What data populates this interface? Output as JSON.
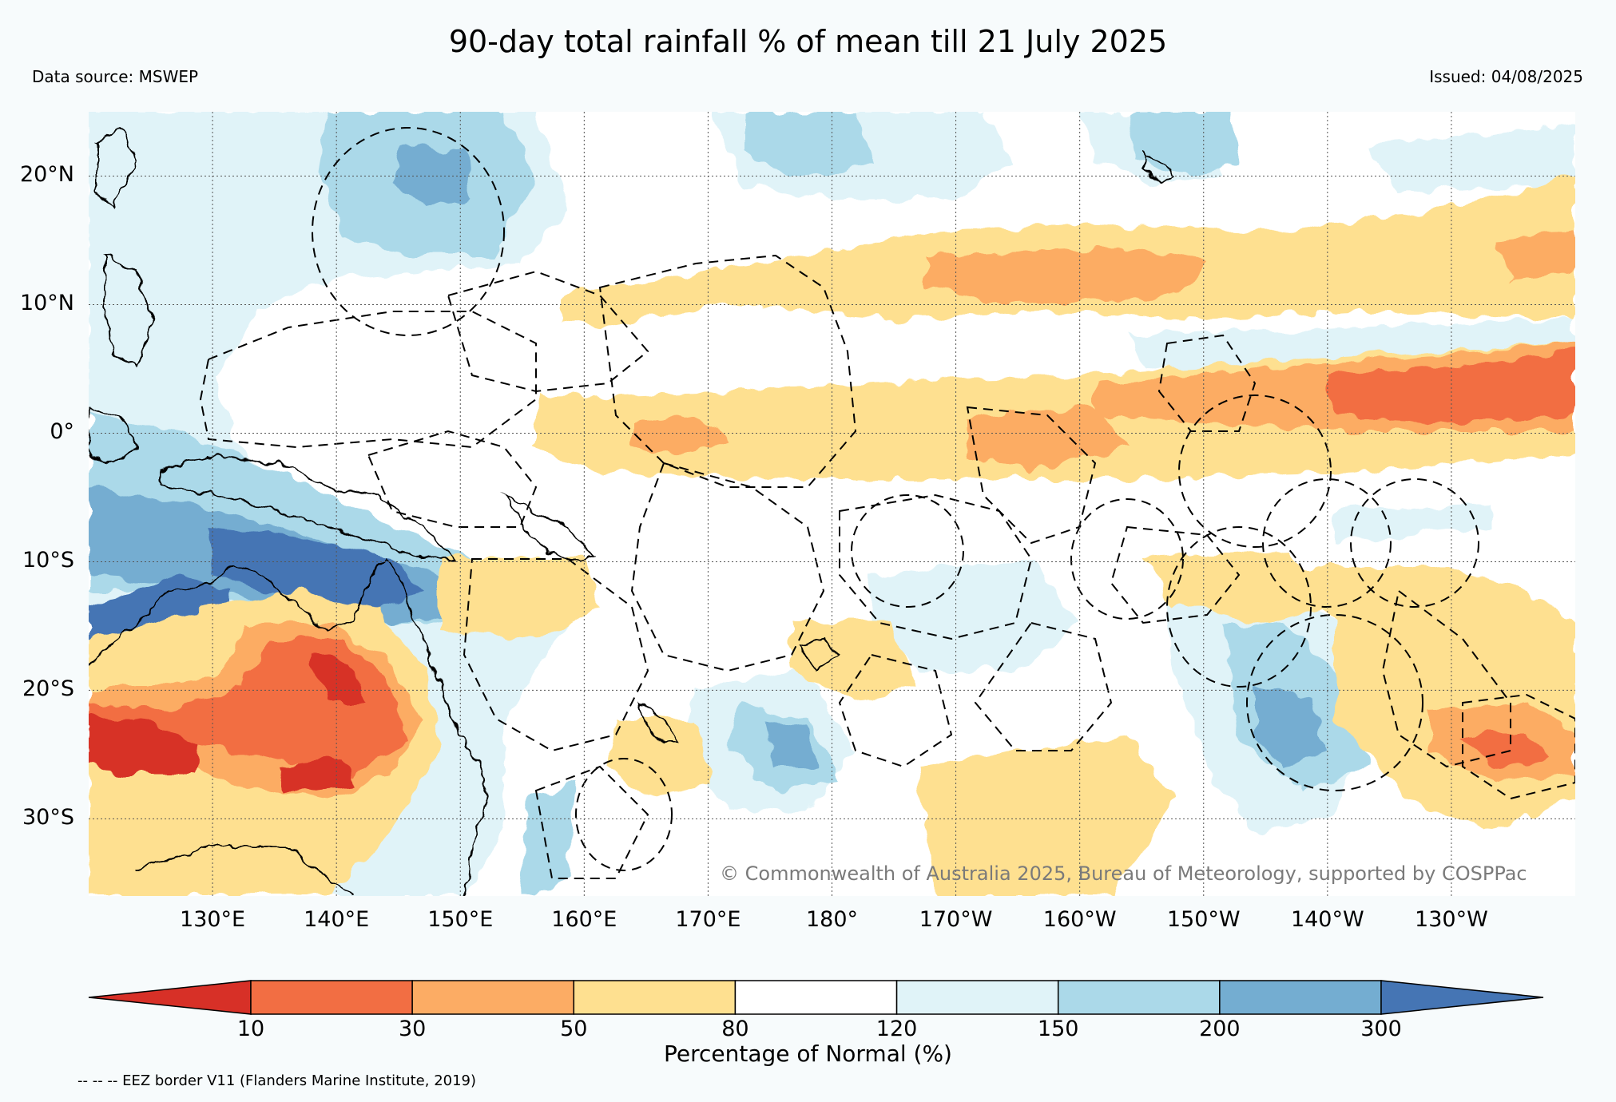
{
  "header": {
    "title": "90-day total rainfall % of mean till 21 July 2025",
    "data_source": "Data source: MSWEP",
    "issued": "Issued: 04/08/2025"
  },
  "map": {
    "extent": {
      "lon_min": 120,
      "lon_max": 240,
      "lat_min": -36,
      "lat_max": 25
    },
    "lat_labels": [
      "20°N",
      "10°N",
      "0°",
      "10°S",
      "20°S",
      "30°S"
    ],
    "lat_values": [
      20,
      10,
      0,
      -10,
      -20,
      -30
    ],
    "lon_labels": [
      "130°E",
      "140°E",
      "150°E",
      "160°E",
      "170°E",
      "180°",
      "170°W",
      "160°W",
      "150°W",
      "140°W",
      "130°W"
    ],
    "lon_values": [
      130,
      140,
      150,
      160,
      170,
      180,
      190,
      200,
      210,
      220,
      230
    ],
    "copyright": "© Commonwealth of Australia 2025, Bureau of Meteorology, supported by COSPPac"
  },
  "colorbar": {
    "title": "Percentage of Normal (%)",
    "ticks": [
      "10",
      "30",
      "50",
      "80",
      "120",
      "150",
      "200",
      "300"
    ],
    "colors": [
      "#d73027",
      "#f26e43",
      "#fcac64",
      "#fee090",
      "#ffffff",
      "#e0f3f8",
      "#abd9e9",
      "#74add1",
      "#4575b4"
    ]
  },
  "legend": {
    "eez_note": "-- -- -- EEZ border V11 (Flanders Marine Institute, 2019)"
  }
}
